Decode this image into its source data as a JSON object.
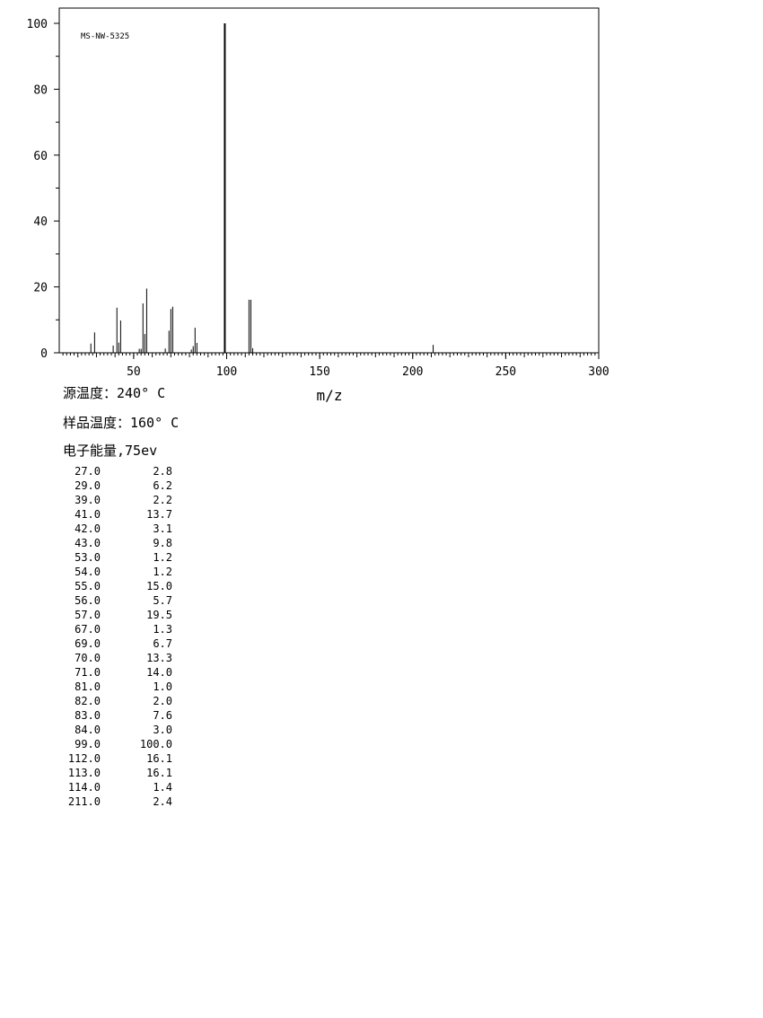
{
  "chart_data": {
    "type": "bar",
    "title": "MS-NW-5325",
    "xlabel": "m/z",
    "ylabel": "",
    "xlim": [
      10,
      300
    ],
    "ylim": [
      0,
      100
    ],
    "x_ticks": [
      50,
      100,
      150,
      200,
      250,
      300
    ],
    "y_ticks": [
      0,
      20,
      40,
      60,
      80,
      100
    ],
    "grid": false,
    "peaks": [
      {
        "mz": "27.0",
        "intensity": "2.8"
      },
      {
        "mz": "29.0",
        "intensity": "6.2"
      },
      {
        "mz": "39.0",
        "intensity": "2.2"
      },
      {
        "mz": "41.0",
        "intensity": "13.7"
      },
      {
        "mz": "42.0",
        "intensity": "3.1"
      },
      {
        "mz": "43.0",
        "intensity": "9.8"
      },
      {
        "mz": "53.0",
        "intensity": "1.2"
      },
      {
        "mz": "54.0",
        "intensity": "1.2"
      },
      {
        "mz": "55.0",
        "intensity": "15.0"
      },
      {
        "mz": "56.0",
        "intensity": "5.7"
      },
      {
        "mz": "57.0",
        "intensity": "19.5"
      },
      {
        "mz": "67.0",
        "intensity": "1.3"
      },
      {
        "mz": "69.0",
        "intensity": "6.7"
      },
      {
        "mz": "70.0",
        "intensity": "13.3"
      },
      {
        "mz": "71.0",
        "intensity": "14.0"
      },
      {
        "mz": "81.0",
        "intensity": "1.0"
      },
      {
        "mz": "82.0",
        "intensity": "2.0"
      },
      {
        "mz": "83.0",
        "intensity": "7.6"
      },
      {
        "mz": "84.0",
        "intensity": "3.0"
      },
      {
        "mz": "99.0",
        "intensity": "100.0"
      },
      {
        "mz": "112.0",
        "intensity": "16.1"
      },
      {
        "mz": "113.0",
        "intensity": "16.1"
      },
      {
        "mz": "114.0",
        "intensity": "1.4"
      },
      {
        "mz": "211.0",
        "intensity": "2.4"
      }
    ]
  },
  "info": {
    "source_temp": "源温度：240° C",
    "sample_temp": "样品温度：160° C",
    "electron_energy": "电子能量,75ev"
  }
}
